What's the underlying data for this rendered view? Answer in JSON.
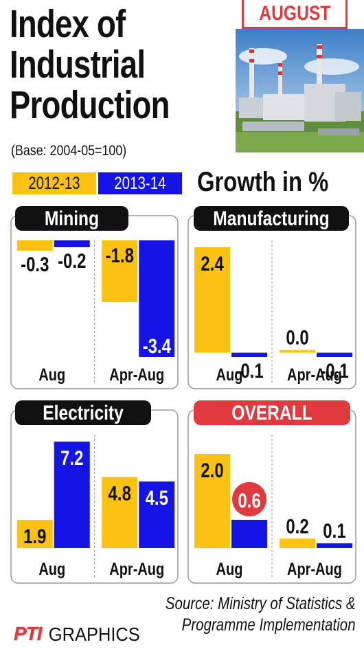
{
  "title_lines": [
    "Index of",
    "Industrial",
    "Production"
  ],
  "base_note": "(Base: 2004-05=100)",
  "month_badge": "AUGUST",
  "growth_label": "Growth in %",
  "legend": [
    {
      "label": "2012-13",
      "color": "#fcc211"
    },
    {
      "label": "2013-14",
      "color": "#1414e6"
    }
  ],
  "colors": {
    "series_a": "#fcc211",
    "series_b": "#1414e6",
    "accent": "#e03a3e",
    "header": "#111111"
  },
  "chart_data": [
    {
      "type": "bar",
      "title": "Mining",
      "categories": [
        "Aug",
        "Apr-Aug"
      ],
      "series": [
        {
          "name": "2012-13",
          "values": [
            -0.3,
            -1.8
          ]
        },
        {
          "name": "2013-14",
          "values": [
            -0.2,
            -3.4
          ]
        }
      ],
      "value_labels": [
        [
          "-0.3",
          "-1.8"
        ],
        [
          "-0.2",
          "-3.4"
        ]
      ],
      "ylim": [
        -3.4,
        0
      ]
    },
    {
      "type": "bar",
      "title": "Manufacturing",
      "categories": [
        "Aug",
        "Apr-Aug"
      ],
      "series": [
        {
          "name": "2012-13",
          "values": [
            2.4,
            0.0
          ]
        },
        {
          "name": "2013-14",
          "values": [
            -0.1,
            -0.1
          ]
        }
      ],
      "value_labels": [
        [
          "2.4",
          "0.0"
        ],
        [
          "-0.1",
          "-0.1"
        ]
      ],
      "ylim": [
        -0.1,
        2.4
      ]
    },
    {
      "type": "bar",
      "title": "Electricity",
      "categories": [
        "Aug",
        "Apr-Aug"
      ],
      "series": [
        {
          "name": "2012-13",
          "values": [
            1.9,
            4.8
          ]
        },
        {
          "name": "2013-14",
          "values": [
            7.2,
            4.5
          ]
        }
      ],
      "value_labels": [
        [
          "1.9",
          "4.8"
        ],
        [
          "7.2",
          "4.5"
        ]
      ],
      "ylim": [
        0,
        7.2
      ]
    },
    {
      "type": "bar",
      "title": "OVERALL",
      "categories": [
        "Aug",
        "Apr-Aug"
      ],
      "series": [
        {
          "name": "2012-13",
          "values": [
            2.0,
            0.2
          ]
        },
        {
          "name": "2013-14",
          "values": [
            0.6,
            0.1
          ]
        }
      ],
      "value_labels": [
        [
          "2.0",
          "0.2"
        ],
        [
          "0.6",
          "0.1"
        ]
      ],
      "ylim": [
        0,
        2.0
      ]
    }
  ],
  "source_lines": [
    "Source: Ministry of Statistics &",
    "Programme Implementation"
  ],
  "logo": {
    "mark": "PTI",
    "text": "GRAPHICS"
  }
}
